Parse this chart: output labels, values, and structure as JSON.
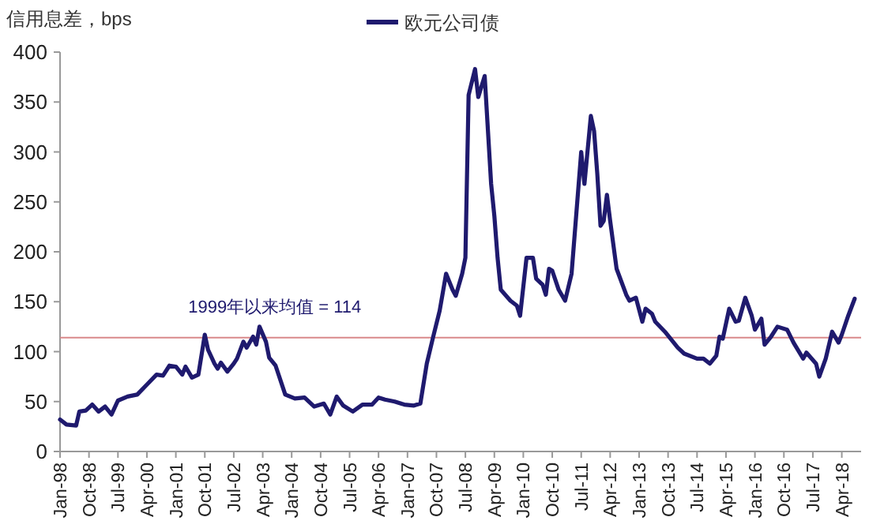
{
  "chart_data": {
    "type": "line",
    "ylabel": "信用息差，bps",
    "legend": "top",
    "x": [
      "1998-01",
      "1998-03",
      "1998-06",
      "1998-07",
      "1998-09",
      "1998-11",
      "1999-01",
      "1999-03",
      "1999-05",
      "1999-07",
      "1999-10",
      "2000-01",
      "2000-04",
      "2000-07",
      "2000-09",
      "2000-11",
      "2001-01",
      "2001-03",
      "2001-04",
      "2001-06",
      "2001-08",
      "2001-10",
      "2001-11",
      "2002-01",
      "2002-02",
      "2002-03",
      "2002-05",
      "2002-07",
      "2002-08",
      "2002-10",
      "2002-11",
      "2003-01",
      "2003-02",
      "2003-03",
      "2003-05",
      "2003-06",
      "2003-08",
      "2003-11",
      "2004-02",
      "2004-05",
      "2004-08",
      "2004-11",
      "2005-01",
      "2005-03",
      "2005-05",
      "2005-08",
      "2005-11",
      "2006-02",
      "2006-04",
      "2006-06",
      "2006-09",
      "2006-12",
      "2007-03",
      "2007-05",
      "2007-07",
      "2007-09",
      "2007-11",
      "2008-01",
      "2008-03",
      "2008-04",
      "2008-06",
      "2008-07",
      "2008-08",
      "2008-10",
      "2008-11",
      "2009-01",
      "2009-03",
      "2009-04",
      "2009-05",
      "2009-06",
      "2009-09",
      "2009-11",
      "2009-12",
      "2010-02",
      "2010-04",
      "2010-05",
      "2010-07",
      "2010-08",
      "2010-09",
      "2010-10",
      "2010-12",
      "2011-02",
      "2011-04",
      "2011-07",
      "2011-08",
      "2011-10",
      "2011-11",
      "2011-12",
      "2012-01",
      "2012-02",
      "2012-03",
      "2012-04",
      "2012-06",
      "2012-09",
      "2012-10",
      "2012-12",
      "2013-02",
      "2013-03",
      "2013-05",
      "2013-06",
      "2013-09",
      "2014-01",
      "2014-03",
      "2014-07",
      "2014-09",
      "2014-11",
      "2015-01",
      "2015-02",
      "2015-03",
      "2015-05",
      "2015-07",
      "2015-08",
      "2015-10",
      "2015-12",
      "2016-01",
      "2016-03",
      "2016-04",
      "2016-06",
      "2016-08",
      "2016-11",
      "2017-01",
      "2017-04",
      "2017-05",
      "2017-08",
      "2017-09",
      "2017-11",
      "2018-01",
      "2018-03",
      "2018-04",
      "2018-06",
      "2018-08"
    ],
    "series": [
      {
        "name": "欧元公司债",
        "color": "#1f1a6e",
        "values": [
          32,
          27,
          26,
          40,
          41,
          47,
          40,
          45,
          37,
          51,
          55,
          57,
          67,
          77,
          76,
          86,
          85,
          77,
          85,
          74,
          77,
          117,
          102,
          88,
          83,
          89,
          80,
          88,
          93,
          110,
          104,
          115,
          107,
          125,
          110,
          94,
          86,
          57,
          53,
          54,
          45,
          48,
          37,
          55,
          46,
          40,
          47,
          47,
          54,
          52,
          50,
          47,
          46,
          48,
          88,
          115,
          141,
          178,
          162,
          156,
          178,
          194,
          357,
          383,
          355,
          376,
          268,
          236,
          194,
          162,
          151,
          146,
          136,
          194,
          194,
          173,
          167,
          157,
          183,
          181,
          162,
          151,
          178,
          300,
          268,
          336,
          321,
          278,
          226,
          231,
          257,
          231,
          183,
          157,
          151,
          154,
          130,
          143,
          138,
          130,
          120,
          104,
          98,
          93,
          93,
          88,
          96,
          115,
          113,
          143,
          130,
          131,
          154,
          136,
          122,
          133,
          107,
          115,
          125,
          122,
          109,
          93,
          99,
          88,
          75,
          93,
          120,
          109,
          117,
          136,
          153
        ]
      }
    ],
    "xlim": [
      "1998-01",
      "2018-10"
    ],
    "xticks": [
      {
        "value": "1998-01",
        "label": "Jan-98"
      },
      {
        "value": "1998-10",
        "label": "Oct-98"
      },
      {
        "value": "1999-07",
        "label": "Jul-99"
      },
      {
        "value": "2000-04",
        "label": "Apr-00"
      },
      {
        "value": "2001-01",
        "label": "Jan-01"
      },
      {
        "value": "2001-10",
        "label": "Oct-01"
      },
      {
        "value": "2002-07",
        "label": "Jul-02"
      },
      {
        "value": "2003-04",
        "label": "Apr-03"
      },
      {
        "value": "2004-01",
        "label": "Jan-04"
      },
      {
        "value": "2004-10",
        "label": "Oct-04"
      },
      {
        "value": "2005-07",
        "label": "Jul-05"
      },
      {
        "value": "2006-04",
        "label": "Apr-06"
      },
      {
        "value": "2007-01",
        "label": "Jan-07"
      },
      {
        "value": "2007-10",
        "label": "Oct-07"
      },
      {
        "value": "2008-07",
        "label": "Jul-08"
      },
      {
        "value": "2009-04",
        "label": "Apr-09"
      },
      {
        "value": "2010-01",
        "label": "Jan-10"
      },
      {
        "value": "2010-10",
        "label": "Oct-10"
      },
      {
        "value": "2011-07",
        "label": "Jul-11"
      },
      {
        "value": "2012-04",
        "label": "Apr-12"
      },
      {
        "value": "2013-01",
        "label": "Jan-13"
      },
      {
        "value": "2013-10",
        "label": "Oct-13"
      },
      {
        "value": "2014-07",
        "label": "Jul-14"
      },
      {
        "value": "2015-04",
        "label": "Apr-15"
      },
      {
        "value": "2016-01",
        "label": "Jan-16"
      },
      {
        "value": "2016-10",
        "label": "Oct-16"
      },
      {
        "value": "2017-07",
        "label": "Jul-17"
      },
      {
        "value": "2018-04",
        "label": "Apr-18"
      }
    ],
    "ylim": [
      0,
      400
    ],
    "yticks": [
      0,
      50,
      100,
      150,
      200,
      250,
      300,
      350,
      400
    ],
    "ref_lines": [
      {
        "axis": "y",
        "value": 114,
        "label": "1999年以来均值 = 114",
        "color": "#d9898a"
      }
    ],
    "grid": false,
    "marker": "none",
    "line_style": "solid"
  }
}
